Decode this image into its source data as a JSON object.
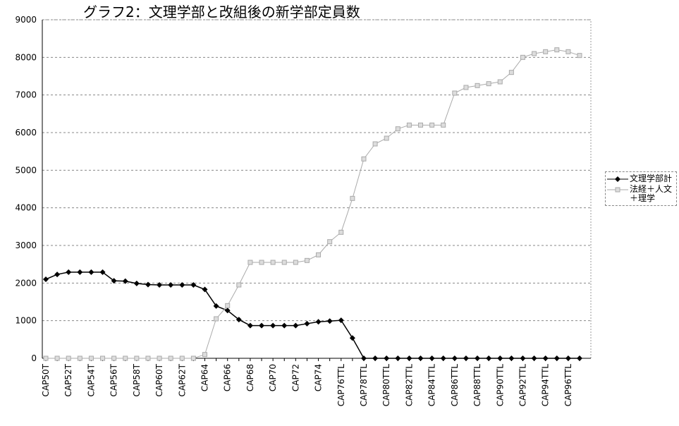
{
  "chart_data": {
    "type": "line",
    "title": "グラフ2：文理学部と改組後の新学部定員数",
    "categories": [
      "CAP50T",
      null,
      "CAP52T",
      null,
      "CAP54T",
      null,
      "CAP56T",
      null,
      "CAP58T",
      null,
      "CAP60T",
      null,
      "CAP62T",
      null,
      "CAP64",
      null,
      "CAP66",
      null,
      "CAP68",
      null,
      "CAP70",
      null,
      "CAP72",
      null,
      "CAP74",
      null,
      "CAP76TTL",
      null,
      "CAP78TTL",
      null,
      "CAP80TTL",
      null,
      "CAP82TTL",
      null,
      "CAP84TTL",
      null,
      "CAP86TTL",
      null,
      "CAP88TTL",
      null,
      "CAP90TTL",
      null,
      "CAP92TTL",
      null,
      "CAP94TTL",
      null,
      "CAP96TTL",
      null
    ],
    "series": [
      {
        "name": "文理学部計",
        "color": "#000000",
        "marker": "diamond",
        "values": [
          2100,
          2230,
          2290,
          2290,
          2290,
          2290,
          2060,
          2050,
          1990,
          1960,
          1950,
          1950,
          1950,
          1950,
          1830,
          1390,
          1270,
          1030,
          870,
          870,
          870,
          870,
          870,
          920,
          970,
          990,
          1010,
          540,
          0,
          0,
          0,
          0,
          0,
          0,
          0,
          0,
          0,
          0,
          0,
          0,
          0,
          0,
          0,
          0,
          0,
          0,
          0,
          0
        ]
      },
      {
        "name": "法経＋人文＋理学",
        "color": "#aaaaaa",
        "marker": "square",
        "values": [
          0,
          0,
          0,
          0,
          0,
          0,
          0,
          0,
          0,
          0,
          0,
          0,
          0,
          0,
          100,
          1050,
          1400,
          1950,
          2550,
          2550,
          2550,
          2550,
          2550,
          2600,
          2750,
          3100,
          3350,
          4250,
          5300,
          5700,
          5850,
          6100,
          6200,
          6200,
          6200,
          6200,
          7050,
          7200,
          7250,
          7300,
          7350,
          7600,
          8000,
          8100,
          8150,
          8200,
          8150,
          8050
        ]
      }
    ],
    "ylim": [
      0,
      9000
    ],
    "yticks": [
      0,
      1000,
      2000,
      3000,
      4000,
      5000,
      6000,
      7000,
      8000,
      9000
    ],
    "grid": true,
    "legend": "right"
  }
}
